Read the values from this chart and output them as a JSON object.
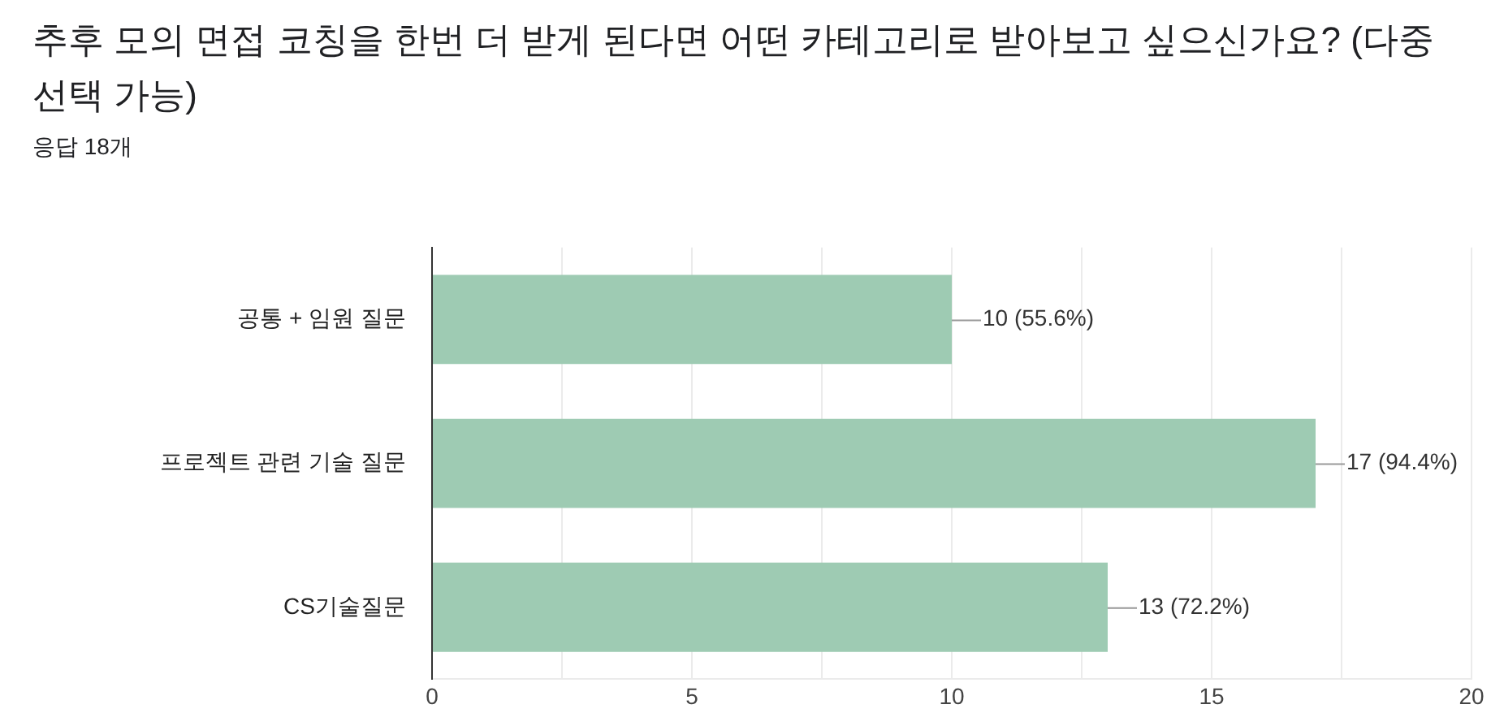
{
  "chart_data": {
    "type": "bar",
    "orientation": "horizontal",
    "title": "추후 모의 면접 코칭을 한번 더 받게 된다면 어떤 카테고리로 받아보고 싶으신가요? (다중 선택 가능)",
    "subtitle": "응답 18개",
    "categories": [
      "공통 + 임원 질문",
      "프로젝트 관련 기술 질문",
      "CS기술질문"
    ],
    "values": [
      10,
      17,
      13
    ],
    "value_labels": [
      "10 (55.6%)",
      "17 (94.4%)",
      "13 (72.2%)"
    ],
    "color": "#9ecbb3",
    "xlim": [
      0,
      20
    ],
    "xticks": [
      0,
      {
        "value": 2.5,
        "label": null
      },
      5,
      {
        "value": 7.5,
        "label": null
      },
      10,
      {
        "value": 12.5,
        "label": null
      },
      15,
      {
        "value": 17.5,
        "label": null
      },
      20
    ],
    "grid": "x",
    "legend": false
  }
}
